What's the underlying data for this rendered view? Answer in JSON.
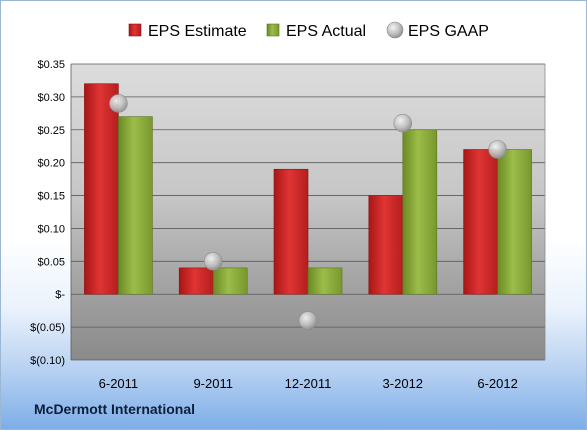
{
  "footer": {
    "company": "McDermott International"
  },
  "chart_data": {
    "type": "bar",
    "categories": [
      "6-2011",
      "9-2011",
      "12-2011",
      "3-2012",
      "6-2012"
    ],
    "series": [
      {
        "name": "EPS Estimate",
        "kind": "bar",
        "color": "#d42a2a",
        "values": [
          0.32,
          0.04,
          0.19,
          0.15,
          0.22
        ]
      },
      {
        "name": "EPS Actual",
        "kind": "bar",
        "color": "#8aaa3c",
        "values": [
          0.27,
          0.04,
          0.04,
          0.25,
          0.22
        ]
      },
      {
        "name": "EPS GAAP",
        "kind": "scatter",
        "color": "#b8b8b8",
        "values": [
          0.29,
          0.05,
          -0.04,
          0.26,
          0.22
        ]
      }
    ],
    "yticks": [
      "$0.35",
      "$0.30",
      "$0.25",
      "$0.20",
      "$0.15",
      "$0.10",
      "$0.05",
      "$-",
      "$(0.05)",
      "$(0.10)"
    ],
    "ytick_values": [
      0.35,
      0.3,
      0.25,
      0.2,
      0.15,
      0.1,
      0.05,
      0,
      -0.05,
      -0.1
    ],
    "ylim": [
      -0.1,
      0.35
    ],
    "grid": true,
    "legend": "top"
  }
}
